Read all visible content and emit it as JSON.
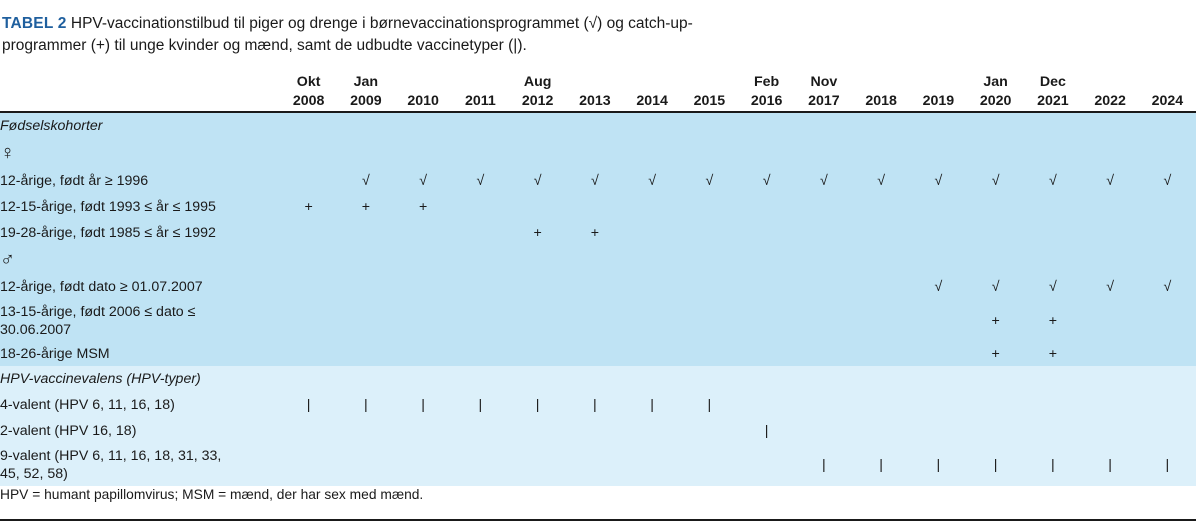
{
  "caption": {
    "label": "TABEL 2",
    "text": "HPV-vaccinationstilbud til piger og drenge i børnevaccinationsprogrammet (√) og catch-up-programmer (+) til unge kvinder og mænd, samt de udbudte vaccinetyper (|)."
  },
  "columns": [
    {
      "month": "Okt",
      "year": "2008"
    },
    {
      "month": "Jan",
      "year": "2009"
    },
    {
      "month": "",
      "year": "2010"
    },
    {
      "month": "",
      "year": "2011"
    },
    {
      "month": "Aug",
      "year": "2012"
    },
    {
      "month": "",
      "year": "2013"
    },
    {
      "month": "",
      "year": "2014"
    },
    {
      "month": "",
      "year": "2015"
    },
    {
      "month": "Feb",
      "year": "2016"
    },
    {
      "month": "Nov",
      "year": "2017"
    },
    {
      "month": "",
      "year": "2018"
    },
    {
      "month": "",
      "year": "2019"
    },
    {
      "month": "Jan",
      "year": "2020"
    },
    {
      "month": "Dec",
      "year": "2021"
    },
    {
      "month": "",
      "year": "2022"
    },
    {
      "month": "",
      "year": "2024"
    }
  ],
  "rows": [
    {
      "label": "Fødselskohorter",
      "italic": true,
      "section": 1,
      "height": 26,
      "cells": [
        "",
        "",
        "",
        "",
        "",
        "",
        "",
        "",
        "",
        "",
        "",
        "",
        "",
        "",
        "",
        ""
      ]
    },
    {
      "label": "♀",
      "symbol": true,
      "section": 1,
      "height": 30,
      "cells": [
        "",
        "",
        "",
        "",
        "",
        "",
        "",
        "",
        "",
        "",
        "",
        "",
        "",
        "",
        "",
        ""
      ]
    },
    {
      "label": "12-årige, født år ≥ 1996",
      "section": 1,
      "height": 26,
      "cells": [
        "",
        "√",
        "√",
        "√",
        "√",
        "√",
        "√",
        "√",
        "√",
        "√",
        "√",
        "√",
        "√",
        "√",
        "√",
        "√"
      ]
    },
    {
      "label": "12-15-årige, født 1993 ≤ år ≤ 1995",
      "section": 1,
      "height": 26,
      "cells": [
        "+",
        "+",
        "+",
        "",
        "",
        "",
        "",
        "",
        "",
        "",
        "",
        "",
        "",
        "",
        "",
        ""
      ]
    },
    {
      "label": "19-28-årige, født 1985 ≤ år ≤ 1992",
      "section": 1,
      "height": 26,
      "cells": [
        "",
        "",
        "",
        "",
        "+",
        "+",
        "",
        "",
        "",
        "",
        "",
        "",
        "",
        "",
        "",
        ""
      ]
    },
    {
      "label": "♂",
      "symbol": true,
      "section": 1,
      "height": 28,
      "cells": [
        "",
        "",
        "",
        "",
        "",
        "",
        "",
        "",
        "",
        "",
        "",
        "",
        "",
        "",
        "",
        ""
      ]
    },
    {
      "label": "12-årige, født dato ≥ 01.07.2007",
      "section": 1,
      "height": 26,
      "cells": [
        "",
        "",
        "",
        "",
        "",
        "",
        "",
        "",
        "",
        "",
        "",
        "√",
        "√",
        "√",
        "√",
        "√"
      ]
    },
    {
      "label": "13-15-årige, født 2006 ≤ dato ≤ 30.06.2007",
      "section": 1,
      "height": 42,
      "cells": [
        "",
        "",
        "",
        "",
        "",
        "",
        "",
        "",
        "",
        "",
        "",
        "",
        "+",
        "+",
        "",
        ""
      ]
    },
    {
      "label": "18-26-årige MSM",
      "section": 1,
      "height": 24,
      "cells": [
        "",
        "",
        "",
        "",
        "",
        "",
        "",
        "",
        "",
        "",
        "",
        "",
        "+",
        "+",
        "",
        ""
      ]
    },
    {
      "label": "HPV-vaccinevalens (HPV-typer)",
      "italic": true,
      "section": 2,
      "height": 26,
      "cells": [
        "",
        "",
        "",
        "",
        "",
        "",
        "",
        "",
        "",
        "",
        "",
        "",
        "",
        "",
        "",
        ""
      ]
    },
    {
      "label": "4-valent (HPV 6, 11, 16, 18)",
      "section": 2,
      "height": 26,
      "cells": [
        "|",
        "|",
        "|",
        "|",
        "|",
        "|",
        "|",
        "|",
        "",
        "",
        "",
        "",
        "",
        "",
        "",
        ""
      ]
    },
    {
      "label": "2-valent (HPV 16, 18)",
      "section": 2,
      "height": 26,
      "cells": [
        "",
        "",
        "",
        "",
        "",
        "",
        "",
        "",
        "|",
        "",
        "",
        "",
        "",
        "",
        "",
        ""
      ]
    },
    {
      "label": "9-valent (HPV 6, 11, 16, 18, 31, 33, 45, 52, 58)",
      "section": 2,
      "height": 42,
      "cells": [
        "",
        "",
        "",
        "",
        "",
        "",
        "",
        "",
        "",
        "|",
        "|",
        "|",
        "|",
        "|",
        "|",
        "|"
      ]
    }
  ],
  "footnote": "HPV = humant papillomvirus; MSM = mænd, der har sex med mænd."
}
